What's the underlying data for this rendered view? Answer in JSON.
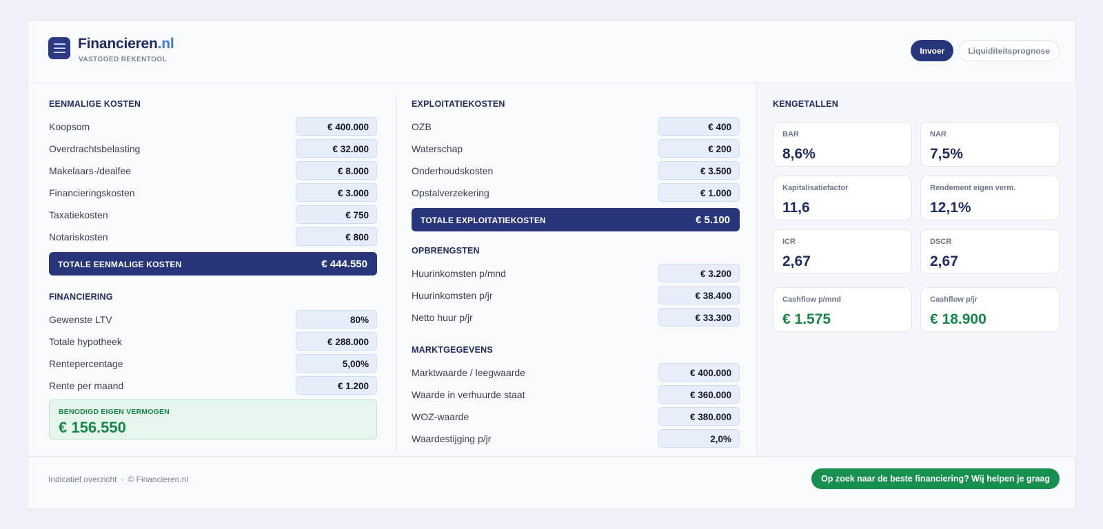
{
  "brand": {
    "name_main": "Financieren",
    "name_tld": ".nl",
    "tagline": "VASTGOED REKENTOOL"
  },
  "nav": {
    "input_label": "Invoer",
    "forecast_label": "Liquiditeitsprognose"
  },
  "eenmalige": {
    "title": "EENMALIGE KOSTEN",
    "rows": [
      {
        "label": "Koopsom",
        "value": "€ 400.000"
      },
      {
        "label": "Overdrachtsbelasting",
        "value": "€ 32.000"
      },
      {
        "label": "Makelaars-/dealfee",
        "value": "€ 8.000"
      },
      {
        "label": "Financieringskosten",
        "value": "€ 3.000"
      },
      {
        "label": "Taxatiekosten",
        "value": "€ 750"
      },
      {
        "label": "Notariskosten",
        "value": "€ 800"
      }
    ],
    "total_label": "TOTALE EENMALIGE KOSTEN",
    "total_value": "€ 444.550"
  },
  "financiering": {
    "title": "FINANCIERING",
    "rows": [
      {
        "label": "Gewenste LTV",
        "value": "80%"
      },
      {
        "label": "Totale hypotheek",
        "value": "€ 288.000"
      },
      {
        "label": "Rentepercentage",
        "value": "5,00%"
      },
      {
        "label": "Rente per maand",
        "value": "€ 1.200"
      }
    ],
    "equity_label": "BENODIGD EIGEN VERMOGEN",
    "equity_value": "€ 156.550"
  },
  "exploitatie": {
    "title": "EXPLOITATIEKOSTEN",
    "rows": [
      {
        "label": "OZB",
        "value": "€ 400"
      },
      {
        "label": "Waterschap",
        "value": "€ 200"
      },
      {
        "label": "Onderhoudskosten",
        "value": "€ 3.500"
      },
      {
        "label": "Opstalverzekering",
        "value": "€ 1.000"
      }
    ],
    "total_label": "TOTALE EXPLOITATIEKOSTEN",
    "total_value": "€ 5.100"
  },
  "opbrengsten": {
    "title": "OPBRENGSTEN",
    "rows": [
      {
        "label": "Huurinkomsten p/mnd",
        "value": "€ 3.200"
      },
      {
        "label": "Huurinkomsten p/jr",
        "value": "€ 38.400"
      },
      {
        "label": "Netto huur p/jr",
        "value": "€ 33.300"
      }
    ]
  },
  "markt": {
    "title": "MARKTGEGEVENS",
    "rows": [
      {
        "label": "Marktwaarde / leegwaarde",
        "value": "€ 400.000"
      },
      {
        "label": "Waarde in verhuurde staat",
        "value": "€ 360.000"
      },
      {
        "label": "WOZ-waarde",
        "value": "€ 380.000"
      },
      {
        "label": "Waardestijging p/jr",
        "value": "2,0%"
      }
    ]
  },
  "kengetallen": {
    "title": "KENGETALLEN",
    "items": [
      {
        "label": "BAR",
        "value": "8,6%"
      },
      {
        "label": "NAR",
        "value": "7,5%"
      },
      {
        "label": "Kapitalisatiefactor",
        "value": "11,6"
      },
      {
        "label": "Rendement eigen verm.",
        "value": "12,1%"
      },
      {
        "label": "ICR",
        "value": "2,67"
      },
      {
        "label": "DSCR",
        "value": "2,67"
      },
      {
        "label": "Cashflow p/mnd",
        "value": "€ 1.575"
      },
      {
        "label": "Cashflow p/jr",
        "value": "€ 18.900"
      }
    ]
  },
  "footer": {
    "note": "Indicatief overzicht",
    "separator": "·",
    "copyright": "© Financieren.nl",
    "cta_label": "Op zoek naar de beste financiering? Wij helpen je graag"
  },
  "colors": {
    "primary": "#27357a",
    "accent_blue": "#3a7bd5",
    "green": "#17854a",
    "input_bg": "#e6eefa"
  }
}
